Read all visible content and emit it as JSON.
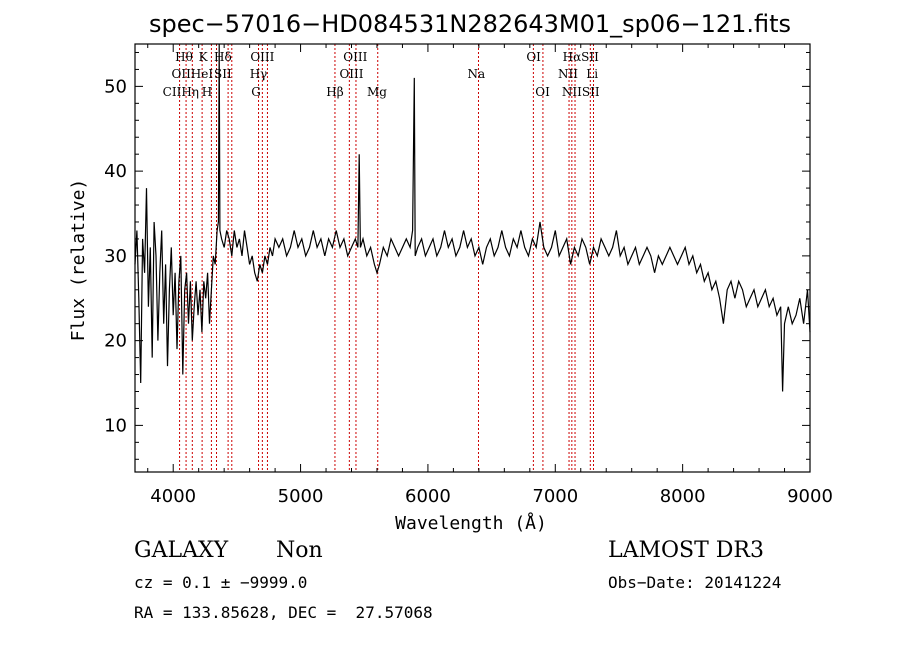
{
  "chart_data": {
    "type": "line",
    "title": "spec−57016−HD084531N282643M01_sp06−121.fits",
    "xlabel": "Wavelength (Å)",
    "ylabel": "Flux (relative)",
    "xlim": [
      3700,
      9000
    ],
    "ylim": [
      4.5,
      55
    ],
    "x_ticks": [
      4000,
      5000,
      6000,
      7000,
      8000,
      9000
    ],
    "y_ticks": [
      10,
      20,
      30,
      40,
      50
    ],
    "grid": false,
    "series": [
      {
        "color": "#000000",
        "points": [
          [
            3700,
            29
          ],
          [
            3715,
            33
          ],
          [
            3730,
            25
          ],
          [
            3745,
            15
          ],
          [
            3760,
            32
          ],
          [
            3775,
            28
          ],
          [
            3790,
            38
          ],
          [
            3805,
            24
          ],
          [
            3820,
            31
          ],
          [
            3835,
            18
          ],
          [
            3850,
            34
          ],
          [
            3865,
            30
          ],
          [
            3880,
            20
          ],
          [
            3895,
            28
          ],
          [
            3910,
            33
          ],
          [
            3925,
            22
          ],
          [
            3940,
            29
          ],
          [
            3955,
            17
          ],
          [
            3970,
            26
          ],
          [
            3985,
            31
          ],
          [
            4000,
            23
          ],
          [
            4015,
            28
          ],
          [
            4030,
            19
          ],
          [
            4045,
            27
          ],
          [
            4060,
            30
          ],
          [
            4075,
            16
          ],
          [
            4090,
            26
          ],
          [
            4105,
            28
          ],
          [
            4120,
            22
          ],
          [
            4135,
            27
          ],
          [
            4150,
            20
          ],
          [
            4165,
            24
          ],
          [
            4180,
            27
          ],
          [
            4195,
            23
          ],
          [
            4210,
            26
          ],
          [
            4225,
            21
          ],
          [
            4240,
            27
          ],
          [
            4255,
            25
          ],
          [
            4270,
            28
          ],
          [
            4285,
            22
          ],
          [
            4300,
            26
          ],
          [
            4315,
            30
          ],
          [
            4330,
            29
          ],
          [
            4345,
            33
          ],
          [
            4355,
            34
          ],
          [
            4361,
            55
          ],
          [
            4367,
            33
          ],
          [
            4380,
            32
          ],
          [
            4400,
            31
          ],
          [
            4420,
            33
          ],
          [
            4440,
            32
          ],
          [
            4460,
            30
          ],
          [
            4480,
            33
          ],
          [
            4500,
            31
          ],
          [
            4520,
            32
          ],
          [
            4540,
            30
          ],
          [
            4560,
            33
          ],
          [
            4580,
            31
          ],
          [
            4600,
            29
          ],
          [
            4620,
            30
          ],
          [
            4640,
            28
          ],
          [
            4660,
            27
          ],
          [
            4680,
            29
          ],
          [
            4700,
            28
          ],
          [
            4720,
            30
          ],
          [
            4740,
            29
          ],
          [
            4760,
            31
          ],
          [
            4780,
            30
          ],
          [
            4800,
            32
          ],
          [
            4830,
            31
          ],
          [
            4860,
            32
          ],
          [
            4890,
            30
          ],
          [
            4920,
            31
          ],
          [
            4950,
            33
          ],
          [
            4980,
            31
          ],
          [
            5010,
            32
          ],
          [
            5040,
            30
          ],
          [
            5070,
            31
          ],
          [
            5100,
            33
          ],
          [
            5130,
            31
          ],
          [
            5160,
            32
          ],
          [
            5190,
            30
          ],
          [
            5220,
            32
          ],
          [
            5250,
            31
          ],
          [
            5280,
            33
          ],
          [
            5310,
            31
          ],
          [
            5340,
            32
          ],
          [
            5370,
            30
          ],
          [
            5400,
            31
          ],
          [
            5430,
            32
          ],
          [
            5450,
            31
          ],
          [
            5460,
            42
          ],
          [
            5470,
            31
          ],
          [
            5490,
            32
          ],
          [
            5520,
            30
          ],
          [
            5550,
            31
          ],
          [
            5580,
            29
          ],
          [
            5600,
            28
          ],
          [
            5620,
            29
          ],
          [
            5650,
            31
          ],
          [
            5680,
            30
          ],
          [
            5710,
            32
          ],
          [
            5740,
            31
          ],
          [
            5770,
            30
          ],
          [
            5800,
            31
          ],
          [
            5830,
            32
          ],
          [
            5860,
            31
          ],
          [
            5880,
            33
          ],
          [
            5893,
            51
          ],
          [
            5900,
            30
          ],
          [
            5920,
            31
          ],
          [
            5950,
            32
          ],
          [
            5980,
            30
          ],
          [
            6010,
            31
          ],
          [
            6040,
            32
          ],
          [
            6070,
            30
          ],
          [
            6100,
            31
          ],
          [
            6130,
            33
          ],
          [
            6160,
            31
          ],
          [
            6190,
            32
          ],
          [
            6220,
            30
          ],
          [
            6250,
            31
          ],
          [
            6280,
            33
          ],
          [
            6310,
            31
          ],
          [
            6340,
            32
          ],
          [
            6370,
            30
          ],
          [
            6400,
            31
          ],
          [
            6430,
            29
          ],
          [
            6460,
            31
          ],
          [
            6490,
            32
          ],
          [
            6520,
            30
          ],
          [
            6550,
            31
          ],
          [
            6580,
            33
          ],
          [
            6610,
            31
          ],
          [
            6640,
            30
          ],
          [
            6670,
            32
          ],
          [
            6700,
            31
          ],
          [
            6730,
            33
          ],
          [
            6760,
            31
          ],
          [
            6790,
            30
          ],
          [
            6820,
            32
          ],
          [
            6850,
            31
          ],
          [
            6880,
            34
          ],
          [
            6910,
            31
          ],
          [
            6940,
            30
          ],
          [
            6970,
            31
          ],
          [
            7000,
            33
          ],
          [
            7030,
            30
          ],
          [
            7060,
            31
          ],
          [
            7090,
            32
          ],
          [
            7120,
            29
          ],
          [
            7150,
            31
          ],
          [
            7180,
            30
          ],
          [
            7210,
            32
          ],
          [
            7240,
            31
          ],
          [
            7270,
            29
          ],
          [
            7300,
            31
          ],
          [
            7330,
            30
          ],
          [
            7360,
            32
          ],
          [
            7390,
            31
          ],
          [
            7420,
            30
          ],
          [
            7450,
            31
          ],
          [
            7480,
            33
          ],
          [
            7510,
            30
          ],
          [
            7540,
            31
          ],
          [
            7570,
            29
          ],
          [
            7600,
            30
          ],
          [
            7630,
            31
          ],
          [
            7660,
            29
          ],
          [
            7690,
            30
          ],
          [
            7720,
            31
          ],
          [
            7750,
            30
          ],
          [
            7780,
            28
          ],
          [
            7810,
            30
          ],
          [
            7840,
            29
          ],
          [
            7870,
            30
          ],
          [
            7900,
            31
          ],
          [
            7930,
            30
          ],
          [
            7960,
            29
          ],
          [
            7990,
            30
          ],
          [
            8020,
            31
          ],
          [
            8050,
            29
          ],
          [
            8080,
            30
          ],
          [
            8110,
            28
          ],
          [
            8140,
            29
          ],
          [
            8170,
            27
          ],
          [
            8200,
            28
          ],
          [
            8230,
            26
          ],
          [
            8260,
            27
          ],
          [
            8290,
            25
          ],
          [
            8320,
            22
          ],
          [
            8350,
            26
          ],
          [
            8380,
            27
          ],
          [
            8410,
            25
          ],
          [
            8440,
            27
          ],
          [
            8470,
            26
          ],
          [
            8500,
            24
          ],
          [
            8530,
            25
          ],
          [
            8560,
            26
          ],
          [
            8590,
            24
          ],
          [
            8620,
            25
          ],
          [
            8650,
            26
          ],
          [
            8680,
            24
          ],
          [
            8710,
            25
          ],
          [
            8740,
            23
          ],
          [
            8770,
            24
          ],
          [
            8785,
            14
          ],
          [
            8800,
            22
          ],
          [
            8830,
            24
          ],
          [
            8860,
            22
          ],
          [
            8890,
            23
          ],
          [
            8920,
            25
          ],
          [
            8950,
            22
          ],
          [
            8980,
            26
          ],
          [
            9000,
            21
          ]
        ]
      }
    ],
    "line_markers": [
      {
        "x": 4050,
        "color": "#cc0000"
      },
      {
        "x": 4101,
        "color": "#cc0000"
      },
      {
        "x": 4150,
        "color": "#cc0000"
      },
      {
        "x": 4227,
        "color": "#cc0000"
      },
      {
        "x": 4300,
        "color": "#cc0000"
      },
      {
        "x": 4340,
        "color": "#cc0000"
      },
      {
        "x": 4431,
        "color": "#cc0000"
      },
      {
        "x": 4460,
        "color": "#cc0000"
      },
      {
        "x": 4670,
        "color": "#cc0000"
      },
      {
        "x": 4700,
        "color": "#cc0000"
      },
      {
        "x": 4740,
        "color": "#cc0000"
      },
      {
        "x": 5270,
        "color": "#cc0000"
      },
      {
        "x": 5383,
        "color": "#cc0000"
      },
      {
        "x": 5435,
        "color": "#cc0000"
      },
      {
        "x": 5606,
        "color": "#cc0000"
      },
      {
        "x": 6397,
        "color": "#cc0000"
      },
      {
        "x": 6828,
        "color": "#cc0000"
      },
      {
        "x": 6903,
        "color": "#cc0000"
      },
      {
        "x": 7108,
        "color": "#cc0000"
      },
      {
        "x": 7130,
        "color": "#cc0000"
      },
      {
        "x": 7155,
        "color": "#cc0000"
      },
      {
        "x": 7275,
        "color": "#cc0000"
      },
      {
        "x": 7300,
        "color": "#cc0000"
      }
    ],
    "line_labels": [
      {
        "text": "Hθ",
        "x": 4085,
        "row": 1
      },
      {
        "text": "K",
        "x": 4235,
        "row": 1
      },
      {
        "text": "Hδ",
        "x": 4390,
        "row": 1
      },
      {
        "text": "OIII",
        "x": 4700,
        "row": 1
      },
      {
        "text": "OIII",
        "x": 5430,
        "row": 1
      },
      {
        "text": "OI",
        "x": 6830,
        "row": 1
      },
      {
        "text": "HαSII",
        "x": 7200,
        "row": 1
      },
      {
        "text": "OIIHeI",
        "x": 4150,
        "row": 2
      },
      {
        "text": "SII",
        "x": 4390,
        "row": 2
      },
      {
        "text": "Hγ",
        "x": 4670,
        "row": 2
      },
      {
        "text": "OIII",
        "x": 5400,
        "row": 2
      },
      {
        "text": "Na",
        "x": 6380,
        "row": 2
      },
      {
        "text": "NII",
        "x": 7100,
        "row": 2
      },
      {
        "text": "Li",
        "x": 7290,
        "row": 2
      },
      {
        "text": "CIIHη",
        "x": 4060,
        "row": 3
      },
      {
        "text": "H",
        "x": 4265,
        "row": 3
      },
      {
        "text": "G",
        "x": 4650,
        "row": 3
      },
      {
        "text": "Hβ",
        "x": 5270,
        "row": 3
      },
      {
        "text": "Mg",
        "x": 5600,
        "row": 3
      },
      {
        "text": "OI",
        "x": 6900,
        "row": 3
      },
      {
        "text": "NIISII",
        "x": 7200,
        "row": 3
      }
    ]
  },
  "info": {
    "object_class": "GALAXY",
    "subclass": "Non",
    "survey": "LAMOST DR3",
    "cz": "cz = 0.1 ± −9999.0",
    "obs_date": "Obs−Date: 20141224",
    "radec": "RA = 133.85628, DEC =  27.57068"
  }
}
